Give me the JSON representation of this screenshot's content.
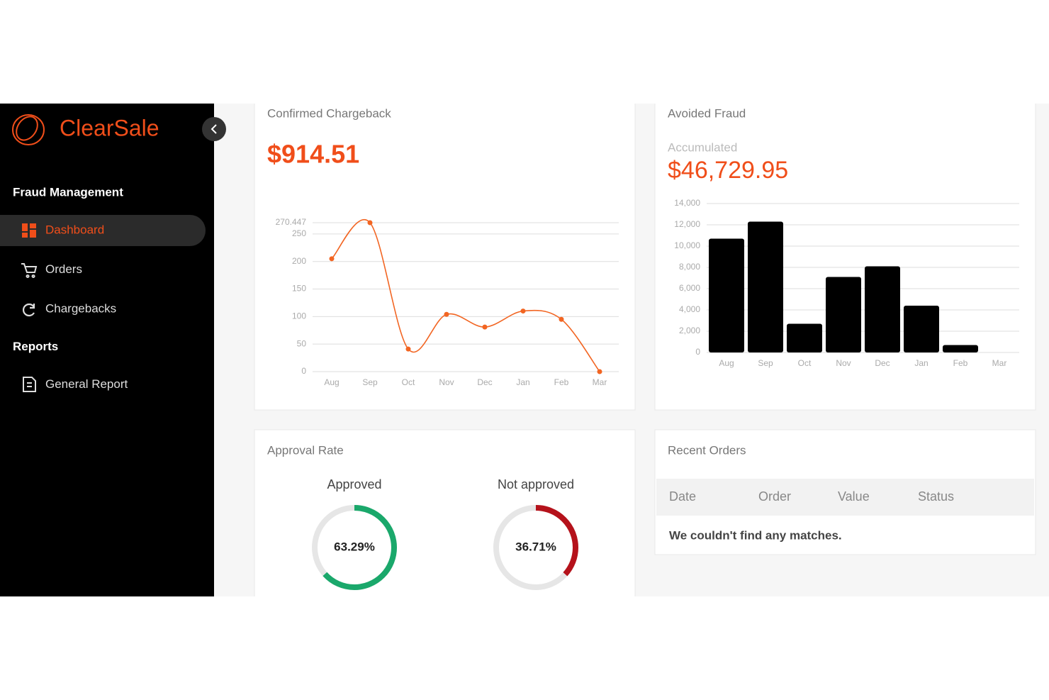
{
  "sidebar": {
    "brand": "ClearSale",
    "sections": [
      {
        "title": "Fraud Management",
        "items": [
          "Dashboard",
          "Orders",
          "Chargebacks"
        ]
      },
      {
        "title": "Reports",
        "items": [
          "General Report"
        ]
      }
    ]
  },
  "chart_data": [
    {
      "type": "line",
      "title": "Confirmed Chargeback",
      "headline": "$914.51",
      "categories": [
        "Aug",
        "Sep",
        "Oct",
        "Nov",
        "Dec",
        "Jan",
        "Feb",
        "Mar"
      ],
      "values": [
        205,
        270.447,
        41,
        104,
        81,
        110,
        95,
        0
      ],
      "color": "#f26522",
      "ylim": [
        0,
        270.447
      ],
      "yticks": [
        0,
        50,
        100,
        150,
        200,
        250,
        270.447
      ],
      "grid": true
    },
    {
      "type": "bar",
      "title": "Avoided Fraud",
      "subtitle": "Accumulated",
      "headline": "$46,729.95",
      "categories": [
        "Aug",
        "Sep",
        "Oct",
        "Nov",
        "Dec",
        "Jan",
        "Feb",
        "Mar"
      ],
      "values": [
        10700,
        12300,
        2700,
        7100,
        8100,
        4400,
        700,
        0
      ],
      "color": "#000000",
      "ylim": [
        0,
        14000
      ],
      "yticks": [
        0,
        {
          "value": 2000,
          "label": "2,000"
        },
        {
          "value": 4000,
          "label": "4,000"
        },
        {
          "value": 6000,
          "label": "6,000"
        },
        {
          "value": 8000,
          "label": "8,000"
        },
        {
          "value": 10000,
          "label": "10,000"
        },
        {
          "value": 12000,
          "label": "12,000"
        },
        {
          "value": 14000,
          "label": "14,000"
        }
      ],
      "grid": true
    },
    {
      "type": "donut",
      "title": "Approved",
      "values": [
        63.29
      ],
      "value_labels": [
        "63.29%"
      ],
      "color": "#1aa86b"
    },
    {
      "type": "donut",
      "title": "Not approved",
      "values": [
        36.71
      ],
      "value_labels": [
        "36.71%"
      ],
      "color": "#b5121b"
    }
  ],
  "approval_card": {
    "title": "Approval Rate"
  },
  "recent_orders": {
    "title": "Recent Orders",
    "columns": [
      "Date",
      "Order",
      "Value",
      "Status"
    ],
    "empty_message": "We couldn't find any matches."
  }
}
